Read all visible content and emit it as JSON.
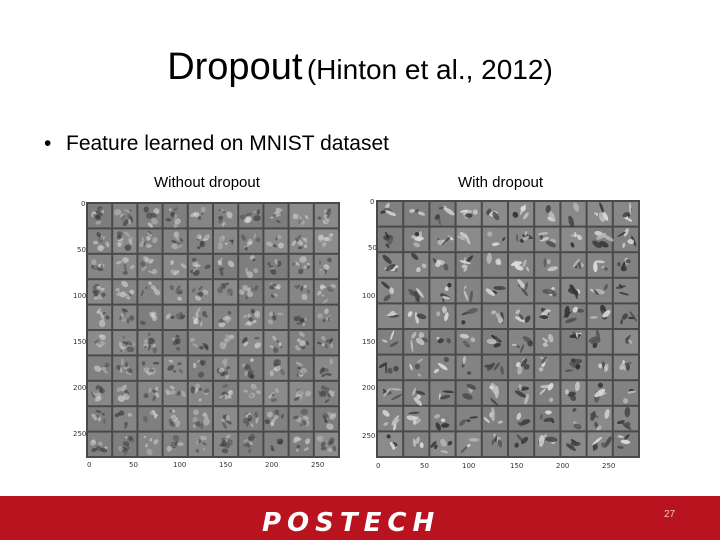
{
  "slide": {
    "title_main": "Dropout",
    "title_sub": "(Hinton et al., 2012)",
    "bullet_marker": "•",
    "bullet_text": "Feature learned on MNIST dataset",
    "page_number": "27"
  },
  "panels": {
    "left": {
      "caption": "Without dropout",
      "y_ticks": [
        "0",
        "50",
        "100",
        "150",
        "200",
        "250"
      ],
      "x_ticks": [
        "0",
        "50",
        "100",
        "150",
        "200",
        "250"
      ]
    },
    "right": {
      "caption": "With dropout",
      "y_ticks": [
        "0",
        "50",
        "100",
        "150",
        "200",
        "250"
      ],
      "x_ticks": [
        "0",
        "50",
        "100",
        "150",
        "200",
        "250"
      ]
    }
  },
  "footer": {
    "logo_text": "POSTECH",
    "color": "#b8131f"
  }
}
